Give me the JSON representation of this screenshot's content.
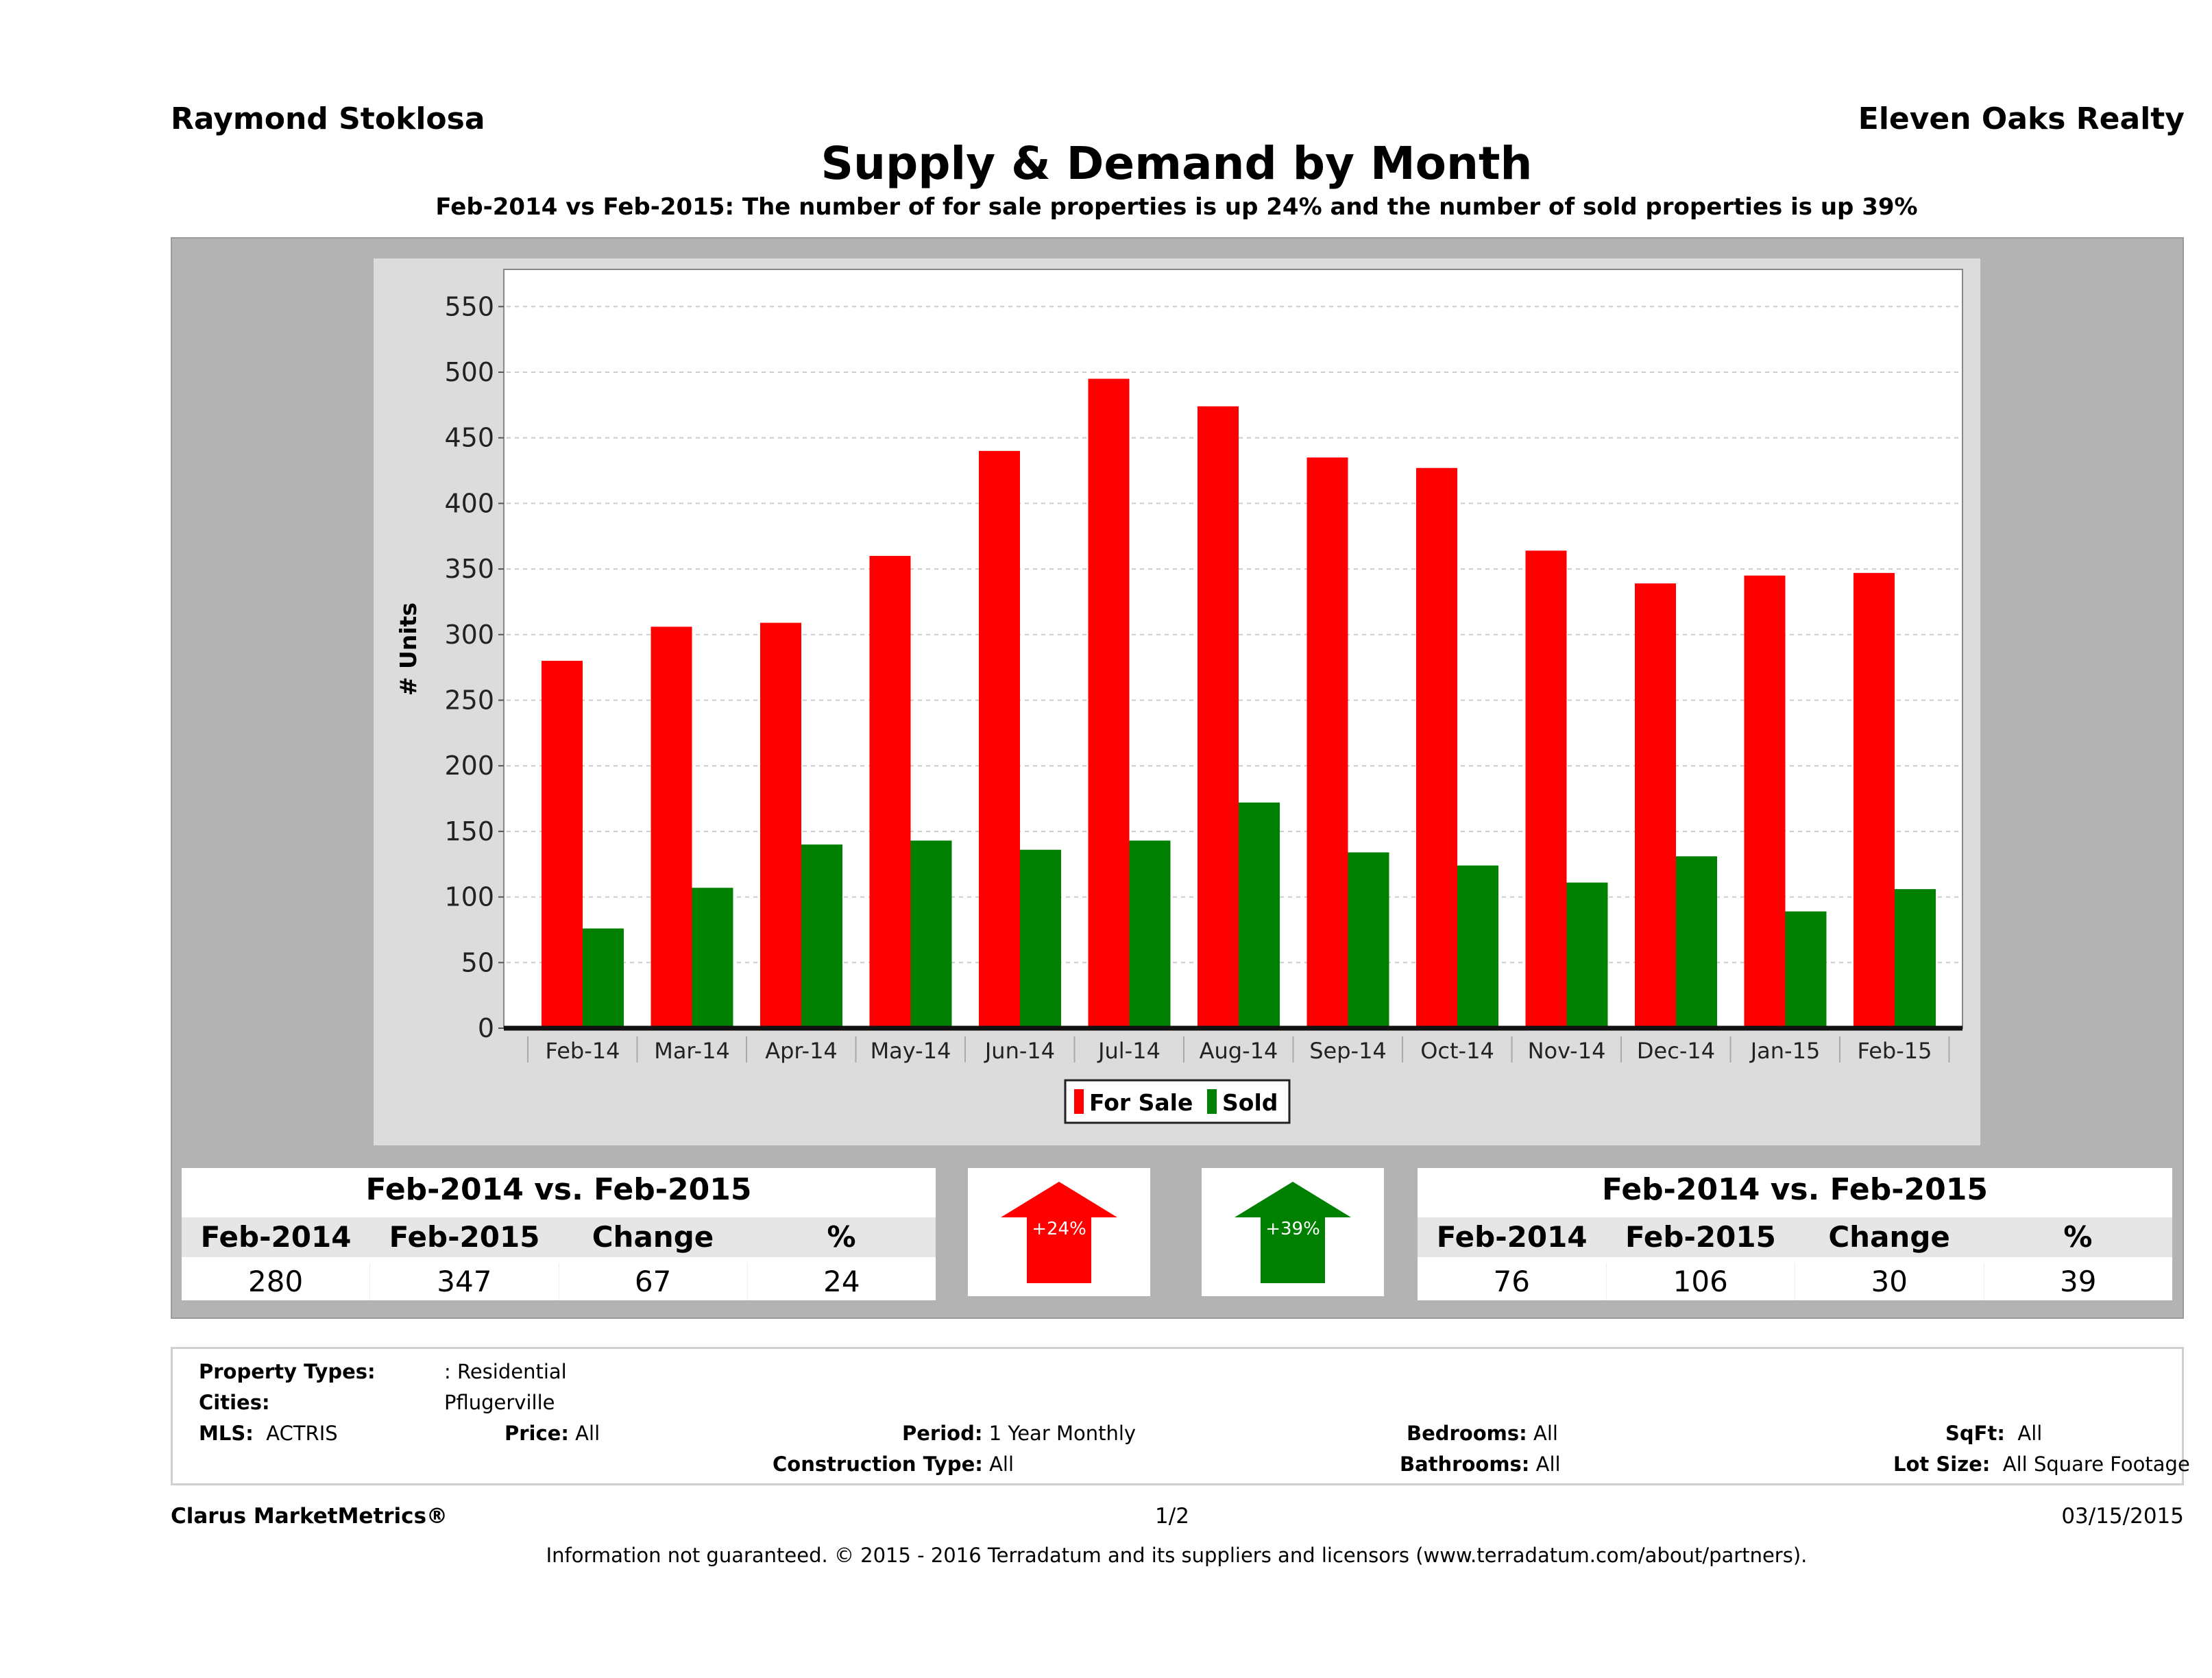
{
  "header": {
    "agent": "Raymond Stoklosa",
    "brokerage": "Eleven Oaks Realty",
    "title": "Supply & Demand by Month",
    "subtitle": "Feb-2014 vs Feb-2015: The number of for sale properties is up 24% and the number of sold properties is up 39%"
  },
  "chart_data": {
    "type": "bar",
    "title": "Supply & Demand by Month",
    "xlabel": "",
    "ylabel": "# Units",
    "ylim": [
      0,
      575
    ],
    "yticks": [
      0,
      50,
      100,
      150,
      200,
      250,
      300,
      350,
      400,
      450,
      500,
      550
    ],
    "grid": true,
    "legend_position": "bottom-center",
    "categories": [
      "Feb-14",
      "Mar-14",
      "Apr-14",
      "May-14",
      "Jun-14",
      "Jul-14",
      "Aug-14",
      "Sep-14",
      "Oct-14",
      "Nov-14",
      "Dec-14",
      "Jan-15",
      "Feb-15"
    ],
    "series": [
      {
        "name": "For Sale",
        "color": "#ff0000",
        "values": [
          280,
          306,
          309,
          360,
          440,
          495,
          474,
          435,
          427,
          364,
          339,
          345,
          347
        ]
      },
      {
        "name": "Sold",
        "color": "#008000",
        "values": [
          76,
          107,
          140,
          143,
          136,
          143,
          172,
          134,
          124,
          111,
          131,
          89,
          106
        ]
      }
    ]
  },
  "for_sale_summary": {
    "title": "Feb-2014 vs. Feb-2015",
    "headers": [
      "Feb-2014",
      "Feb-2015",
      "Change",
      "%"
    ],
    "values": [
      "280",
      "347",
      "67",
      "24"
    ],
    "arrow_label": "+24%",
    "arrow_color": "#ff0000"
  },
  "sold_summary": {
    "title": "Feb-2014 vs. Feb-2015",
    "headers": [
      "Feb-2014",
      "Feb-2015",
      "Change",
      "%"
    ],
    "values": [
      "76",
      "106",
      "30",
      "39"
    ],
    "arrow_label": "+39%",
    "arrow_color": "#008000"
  },
  "filters": {
    "property_types_label": "Property Types:",
    "property_types_value": ": Residential",
    "cities_label": "Cities:",
    "cities_value": "Pflugerville",
    "mls_label": "MLS:",
    "mls_value": "ACTRIS",
    "price_label": "Price:",
    "price_value": "All",
    "period_label": "Period:",
    "period_value": "1 Year Monthly",
    "construction_label": "Construction Type:",
    "construction_value": "All",
    "bedrooms_label": "Bedrooms:",
    "bedrooms_value": "All",
    "bathrooms_label": "Bathrooms:",
    "bathrooms_value": "All",
    "sqft_label": "SqFt:",
    "sqft_value": "All",
    "lotsize_label": "Lot Size:",
    "lotsize_value": "All Square Footage"
  },
  "footer": {
    "product": "Clarus MarketMetrics®",
    "page": "1/2",
    "date": "03/15/2015",
    "disclaimer": "Information not guaranteed. © 2015 - 2016 Terradatum and its suppliers and licensors (www.terradatum.com/about/partners)."
  }
}
